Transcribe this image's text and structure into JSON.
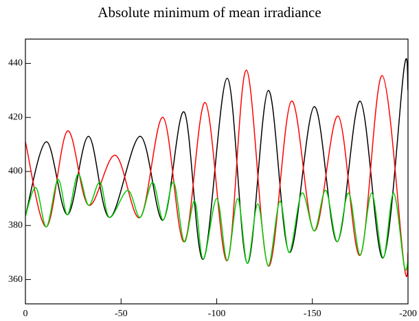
{
  "chart_data": {
    "type": "line",
    "title": "Absolute minimum of mean irradiance",
    "xlim": [
      0,
      -200
    ],
    "xticks": [
      0,
      -50,
      -100,
      -150,
      -200
    ],
    "ylim": [
      351,
      449
    ],
    "yticks": [
      360,
      380,
      400,
      420,
      440
    ],
    "series": [
      {
        "color": "#000000",
        "x": [
          0,
          -11,
          -22,
          -33,
          -44,
          -60,
          -72,
          -83,
          -93,
          -105.5,
          -116,
          -127,
          -138,
          -151,
          -163,
          -175,
          -187,
          -198,
          -200
        ],
        "values": [
          383.5,
          411,
          384,
          413,
          383,
          413,
          382,
          422,
          367.5,
          434.5,
          366,
          430,
          370,
          424,
          374,
          426,
          368,
          438.5,
          430
        ]
      },
      {
        "color": "#ff0000",
        "x": [
          0,
          -11,
          -22,
          -33,
          -47,
          -60,
          -72,
          -83,
          -94,
          -105.5,
          -115.5,
          -127,
          -139,
          -151,
          -163.5,
          -175,
          -186.5,
          -198,
          -200
        ],
        "values": [
          411,
          379.5,
          415,
          387.5,
          406,
          383,
          420,
          374,
          425.5,
          367,
          437.5,
          365,
          426,
          378,
          420.5,
          369,
          435.5,
          365,
          370
        ]
      },
      {
        "color": "#00cc00",
        "x": [
          0,
          -5.5,
          -11,
          -17,
          -22,
          -27.5,
          -33,
          -39,
          -44,
          -53.5,
          -60,
          -66.5,
          -72,
          -77.5,
          -83,
          -88.5,
          -93,
          -100,
          -105.5,
          -111,
          -116,
          -121.5,
          -127,
          -133,
          -138,
          -144.5,
          -151,
          -157,
          -163,
          -169,
          -175,
          -181,
          -187,
          -192.5,
          -198,
          -200
        ],
        "values": [
          383.5,
          394,
          379.5,
          397,
          384,
          399,
          387.5,
          396,
          383,
          393,
          383,
          396,
          382,
          396,
          374,
          389,
          367.5,
          390,
          367,
          390,
          366,
          388,
          365,
          389,
          370,
          392,
          378,
          393,
          374,
          392,
          369,
          392,
          368,
          392,
          365,
          367
        ]
      }
    ]
  }
}
